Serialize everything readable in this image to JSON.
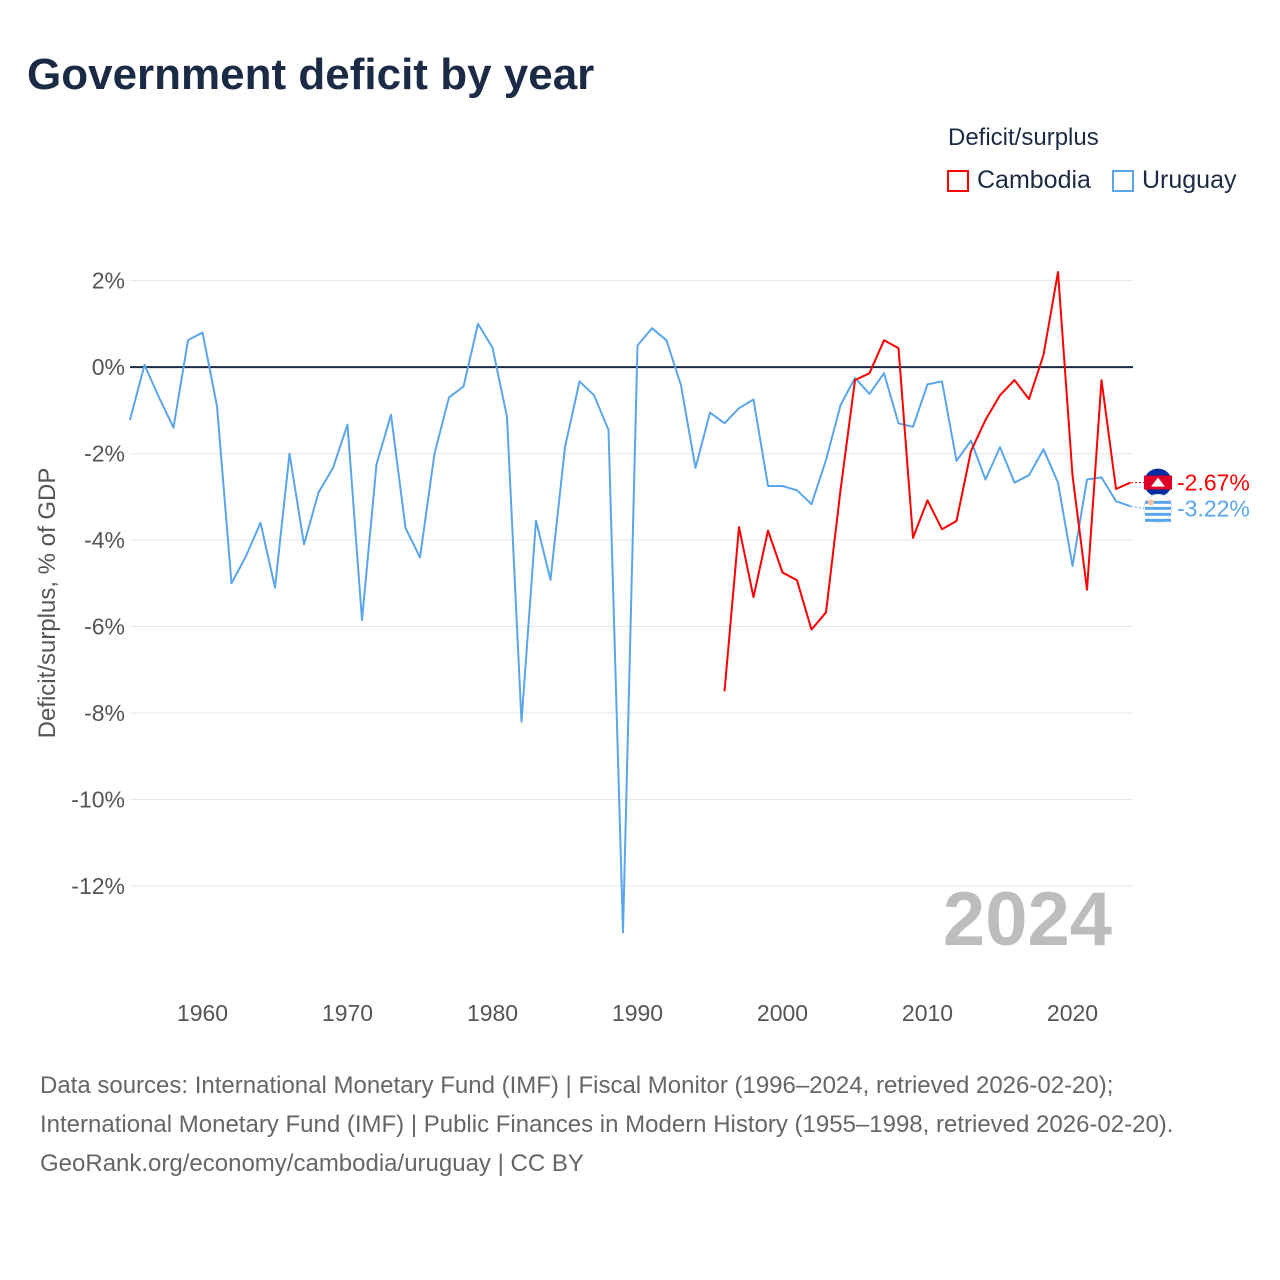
{
  "title": "Government deficit by year",
  "legend": {
    "title": "Deficit/surplus",
    "items": [
      {
        "name": "Cambodia",
        "color": "#ff0000"
      },
      {
        "name": "Uruguay",
        "color": "#5aa6ea"
      }
    ]
  },
  "watermark_year": "2024",
  "end_labels": {
    "cambodia": "-2.67%",
    "uruguay": "-3.22%"
  },
  "sources": "Data sources: International Monetary Fund (IMF) | Fiscal Monitor (1996–2024, retrieved 2026-02-20); International Monetary Fund (IMF) | Public Finances in Modern History (1955–1998, retrieved 2026-02-20).",
  "credit": "GeoRank.org/economy/cambodia/uruguay | CC BY",
  "chart_data": {
    "type": "line",
    "title": "Government deficit by year",
    "xlabel": "",
    "ylabel": "Deficit/surplus, % of GDP",
    "xlim": [
      1955,
      2024
    ],
    "ylim": [
      -14,
      2.5
    ],
    "xticks": [
      1960,
      1970,
      1980,
      1990,
      2000,
      2010,
      2020
    ],
    "xtick_labels": [
      "1960",
      "1970",
      "1980",
      "1990",
      "2000",
      "2010",
      "2020"
    ],
    "yticks": [
      2,
      0,
      -2,
      -4,
      -6,
      -8,
      -10,
      -12
    ],
    "ytick_labels": [
      "2%",
      "0%",
      "-2%",
      "-4%",
      "-6%",
      "-8%",
      "-10%",
      "-12%"
    ],
    "grid": true,
    "legend_position": "top-right",
    "series": [
      {
        "name": "Uruguay",
        "color": "#5aa6ea",
        "start_year": 1955,
        "values": [
          -1.22,
          0.05,
          -0.7,
          -1.4,
          0.62,
          0.8,
          -0.9,
          -5.0,
          -4.37,
          -3.6,
          -5.1,
          -2.0,
          -4.1,
          -2.9,
          -2.33,
          -1.33,
          -5.85,
          -2.25,
          -1.1,
          -3.72,
          -4.4,
          -2.0,
          -0.7,
          -0.45,
          1.0,
          0.45,
          -1.15,
          -8.2,
          -3.55,
          -4.92,
          -1.85,
          -0.33,
          -0.65,
          -1.45,
          -13.07,
          0.5,
          0.9,
          0.62,
          -0.42,
          -2.33,
          -1.05,
          -1.3,
          -0.95,
          -0.75,
          -2.75,
          -2.75,
          -2.85,
          -3.17,
          -2.15,
          -0.88,
          -0.25,
          -0.62,
          -0.14,
          -1.3,
          -1.38,
          -0.4,
          -0.33,
          -2.17,
          -1.7,
          -2.6,
          -1.85,
          -2.67,
          -2.5,
          -1.9,
          -2.67,
          -4.6,
          -2.6,
          -2.55,
          -3.1,
          -3.22
        ]
      },
      {
        "name": "Cambodia",
        "color": "#ff0000",
        "start_year": 1996,
        "values": [
          -7.5,
          -3.7,
          -5.32,
          -3.78,
          -4.75,
          -4.93,
          -6.07,
          -5.67,
          -2.85,
          -0.3,
          -0.14,
          0.62,
          0.44,
          -3.95,
          -3.08,
          -3.75,
          -3.56,
          -1.94,
          -1.22,
          -0.65,
          -0.3,
          -0.74,
          0.28,
          2.2,
          -2.5,
          -5.15,
          -0.3,
          -2.82,
          -2.67
        ]
      }
    ]
  }
}
